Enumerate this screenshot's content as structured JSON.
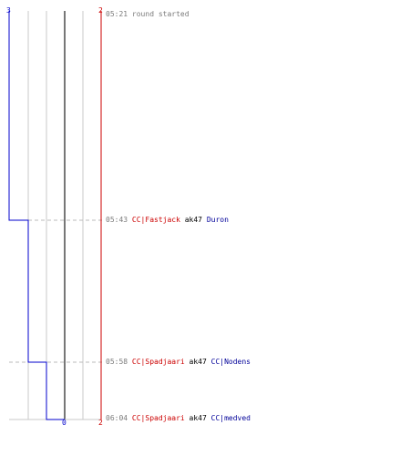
{
  "axis": {
    "top_left": "3",
    "top_right": "2",
    "bottom_center": "0",
    "bottom_right": "2"
  },
  "events": [
    {
      "time": "05:21",
      "text": "round started"
    },
    {
      "time": "05:43",
      "killer": "CC|Fastjack",
      "weapon": "ak47",
      "victim": "Duron"
    },
    {
      "time": "05:58",
      "killer": "CC|Spadjaari",
      "weapon": "ak47",
      "victim": "CC|Nodens"
    },
    {
      "time": "06:04",
      "killer": "CC|Spadjaari",
      "weapon": "ak47",
      "victim": "CC|medved"
    }
  ],
  "colors": {
    "team_red": "#cc0000",
    "team_blue": "#0000cc",
    "grid": "#c8c8c8",
    "center_line": "#777777",
    "timestamp": "#7a7a7a"
  }
}
